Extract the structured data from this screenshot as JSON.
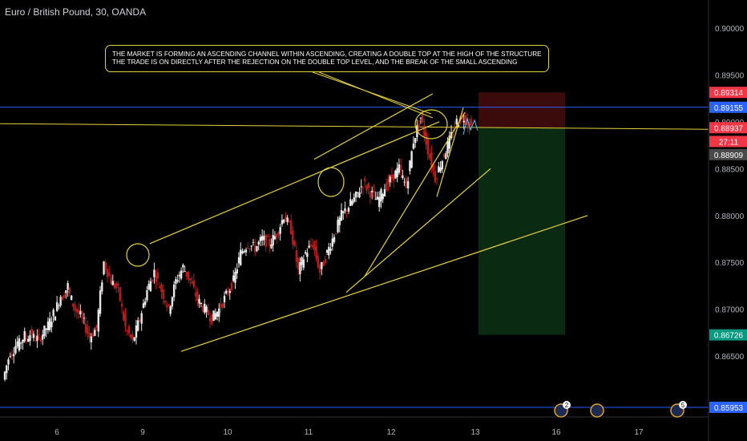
{
  "title": "Euro / British Pound, 30, OANDA",
  "annotation": {
    "line1": "THE MARKET IS FORMING AN ASCENDING CHANNEL WITHIN ASCENDING, CREATING A DOUBLE TOP AT THE HIGH OF THE STRUCTURE",
    "line2": "THE TRADE IS ON DIRECTLY AFTER THE REJECTION ON THE DOUBLE TOP LEVEL, AND THE BREAK OF THE SMALL ASCENDING"
  },
  "colors": {
    "background": "#000000",
    "up_candle": "#e8e8e8",
    "down_candle": "#b71c1c",
    "trendline": "#e6d23a",
    "horizontal_line": "#2962ff",
    "stop_zone": "#3b0a0a",
    "target_zone": "#0a2a12",
    "stop_badge": "#f23645",
    "current_badge": "#f23645",
    "target_badge": "#089981",
    "level_badge": "#2962ff",
    "grey_badge": "#4a4a4a"
  },
  "chart_data": {
    "type": "candlestick",
    "title": "Euro / British Pound, 30, OANDA",
    "x_axis": {
      "tick_labels": [
        "6",
        "9",
        "10",
        "11",
        "12",
        "13",
        "16",
        "17"
      ]
    },
    "y_axis": {
      "range": [
        0.8585,
        0.903
      ],
      "tick_labels": [
        "0.90000",
        "0.89500",
        "0.89000",
        "0.88500",
        "0.88000",
        "0.87500",
        "0.87000",
        "0.86500"
      ],
      "tick_values": [
        0.9,
        0.895,
        0.89,
        0.885,
        0.88,
        0.875,
        0.87,
        0.865
      ]
    },
    "price_badges": [
      {
        "label": "0.89314",
        "value": 0.89314,
        "kind": "stop"
      },
      {
        "label": "0.89155",
        "value": 0.89155,
        "kind": "level"
      },
      {
        "label": "0.88937",
        "value": 0.88937,
        "kind": "current"
      },
      {
        "label": "27:11",
        "value": 0.8879,
        "kind": "current"
      },
      {
        "label": "0.88909",
        "value": 0.8865,
        "kind": "grey"
      },
      {
        "label": "0.86726",
        "value": 0.86726,
        "kind": "target"
      },
      {
        "label": "0.85953",
        "value": 0.85953,
        "kind": "level"
      }
    ],
    "horizontal_levels": [
      0.89155,
      0.85953
    ],
    "trade_zones": {
      "entry": 0.88937,
      "stop": 0.89314,
      "target": 0.86726
    },
    "events": [
      {
        "label": "2"
      },
      {
        "label": ""
      },
      {
        "label": "5"
      }
    ],
    "price_path": [
      [
        0.8625,
        0.8655
      ],
      [
        0.865,
        0.8665
      ],
      [
        0.866,
        0.8672
      ],
      [
        0.8668,
        0.8675
      ],
      [
        0.867,
        0.8668
      ],
      [
        0.8668,
        0.868
      ],
      [
        0.8678,
        0.8695
      ],
      [
        0.8692,
        0.8715
      ],
      [
        0.871,
        0.8725
      ],
      [
        0.872,
        0.87
      ],
      [
        0.87,
        0.869
      ],
      [
        0.869,
        0.867
      ],
      [
        0.867,
        0.868
      ],
      [
        0.868,
        0.875
      ],
      [
        0.875,
        0.873
      ],
      [
        0.873,
        0.872
      ],
      [
        0.872,
        0.868
      ],
      [
        0.868,
        0.8665
      ],
      [
        0.8665,
        0.869
      ],
      [
        0.869,
        0.872
      ],
      [
        0.872,
        0.874
      ],
      [
        0.874,
        0.872
      ],
      [
        0.872,
        0.87
      ],
      [
        0.87,
        0.873
      ],
      [
        0.873,
        0.8745
      ],
      [
        0.8745,
        0.873
      ],
      [
        0.873,
        0.871
      ],
      [
        0.871,
        0.87
      ],
      [
        0.87,
        0.869
      ],
      [
        0.869,
        0.87
      ],
      [
        0.87,
        0.8715
      ],
      [
        0.8715,
        0.873
      ],
      [
        0.873,
        0.876
      ],
      [
        0.876,
        0.877
      ],
      [
        0.877,
        0.8765
      ],
      [
        0.8765,
        0.8775
      ],
      [
        0.8775,
        0.877
      ],
      [
        0.877,
        0.878
      ],
      [
        0.878,
        0.88
      ],
      [
        0.88,
        0.8785
      ],
      [
        0.8785,
        0.874
      ],
      [
        0.874,
        0.876
      ],
      [
        0.876,
        0.877
      ],
      [
        0.877,
        0.874
      ],
      [
        0.874,
        0.876
      ],
      [
        0.876,
        0.878
      ],
      [
        0.878,
        0.88
      ],
      [
        0.88,
        0.881
      ],
      [
        0.881,
        0.882
      ],
      [
        0.882,
        0.8835
      ],
      [
        0.8835,
        0.8825
      ],
      [
        0.8825,
        0.8815
      ],
      [
        0.8815,
        0.883
      ],
      [
        0.883,
        0.884
      ],
      [
        0.884,
        0.885
      ],
      [
        0.885,
        0.883
      ],
      [
        0.883,
        0.888
      ],
      [
        0.888,
        0.8905
      ],
      [
        0.8905,
        0.887
      ],
      [
        0.887,
        0.884
      ],
      [
        0.884,
        0.886
      ],
      [
        0.886,
        0.888
      ],
      [
        0.888,
        0.89
      ],
      [
        0.89,
        0.8905
      ],
      [
        0.8905,
        0.8895
      ]
    ]
  }
}
